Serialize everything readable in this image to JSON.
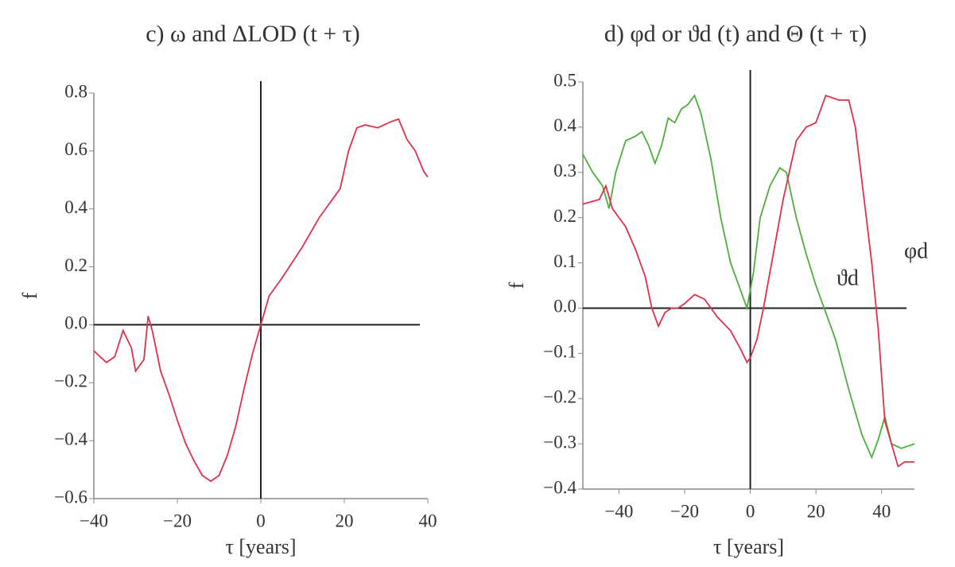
{
  "chart_data": [
    {
      "type": "line",
      "title": "c) ω and ΔLOD (t + τ)",
      "xlabel": "τ [years]",
      "ylabel": "f",
      "xlim": [
        -40,
        40
      ],
      "xticks": [
        {
          "value": -40,
          "label": "−40"
        },
        {
          "value": -20,
          "label": "−20"
        },
        0,
        20,
        40
      ],
      "ylim": [
        -0.6,
        0.8
      ],
      "yticks": [
        {
          "value": -0.6,
          "label": "−0.6"
        },
        {
          "value": -0.4,
          "label": "−0.4"
        },
        {
          "value": -0.2,
          "label": "−0.2"
        },
        {
          "value": 0,
          "label": "0.0"
        },
        0.2,
        0.4,
        0.6,
        0.8
      ],
      "series": [
        {
          "color": "#e0304a",
          "x": [
            -40,
            -37,
            -35,
            -33,
            -31,
            -30,
            -28,
            -27,
            -26,
            -24,
            -22,
            -20,
            -18,
            -16,
            -14,
            -12,
            -10,
            -8,
            -6,
            -4,
            -2,
            0,
            2,
            5,
            10,
            14,
            17,
            19,
            21,
            23,
            25,
            28,
            31,
            33,
            35,
            37,
            39,
            40
          ],
          "values": [
            -0.09,
            -0.13,
            -0.11,
            -0.02,
            -0.08,
            -0.16,
            -0.12,
            0.03,
            -0.02,
            -0.16,
            -0.24,
            -0.33,
            -0.41,
            -0.47,
            -0.52,
            -0.54,
            -0.52,
            -0.45,
            -0.35,
            -0.22,
            -0.1,
            0,
            0.1,
            0.16,
            0.27,
            0.37,
            0.43,
            0.47,
            0.6,
            0.68,
            0.69,
            0.68,
            0.7,
            0.71,
            0.64,
            0.6,
            0.53,
            0.51
          ]
        }
      ]
    },
    {
      "type": "line",
      "title": "d) φd  or  ϑd (t)  and  Θ (t + τ)",
      "xlabel": "τ [years]",
      "ylabel": "f",
      "xlim": [
        -51,
        50
      ],
      "xticks": [
        {
          "value": -40,
          "label": "−40"
        },
        {
          "value": -20,
          "label": "−20"
        },
        0,
        20,
        40
      ],
      "ylim": [
        -0.4,
        0.5
      ],
      "yticks": [
        {
          "value": -0.4,
          "label": "−0.4"
        },
        {
          "value": -0.3,
          "label": "−0.3"
        },
        {
          "value": -0.2,
          "label": "−0.2"
        },
        {
          "value": -0.1,
          "label": "−0.1"
        },
        {
          "value": 0,
          "label": "0.0"
        },
        0.1,
        0.2,
        0.3,
        0.4,
        0.5
      ],
      "series": [
        {
          "name": "ϑd",
          "color": "#4caf3a",
          "x": [
            -51,
            -48,
            -45,
            -43,
            -41,
            -38,
            -35,
            -33,
            -31,
            -29,
            -27,
            -25,
            -23,
            -21,
            -19,
            -17,
            -15,
            -12,
            -9,
            -6,
            -3,
            -1,
            1,
            3,
            6,
            9,
            11,
            14,
            17,
            20,
            23,
            26,
            30,
            34,
            37,
            39,
            41,
            43,
            46,
            50
          ],
          "values": [
            0.34,
            0.3,
            0.27,
            0.22,
            0.3,
            0.37,
            0.38,
            0.39,
            0.36,
            0.32,
            0.36,
            0.42,
            0.41,
            0.44,
            0.45,
            0.47,
            0.43,
            0.33,
            0.2,
            0.1,
            0.04,
            0,
            0.08,
            0.2,
            0.27,
            0.31,
            0.3,
            0.2,
            0.12,
            0.05,
            -0.01,
            -0.07,
            -0.18,
            -0.28,
            -0.33,
            -0.29,
            -0.24,
            -0.3,
            -0.31,
            -0.3
          ]
        },
        {
          "name": "φd",
          "color": "#e0304a",
          "x": [
            -51,
            -46,
            -44,
            -42,
            -40,
            -38,
            -35,
            -32,
            -30,
            -28,
            -26,
            -24,
            -22,
            -20,
            -17,
            -14,
            -10,
            -6,
            -3,
            -1,
            0,
            2,
            4,
            7,
            10,
            14,
            17,
            20,
            23,
            27,
            30,
            32,
            35,
            37,
            39,
            41,
            43,
            45,
            47,
            50
          ],
          "values": [
            0.23,
            0.24,
            0.27,
            0.22,
            0.2,
            0.18,
            0.13,
            0.07,
            0,
            -0.04,
            -0.01,
            0,
            0,
            0.01,
            0.03,
            0.02,
            -0.02,
            -0.05,
            -0.09,
            -0.12,
            -0.11,
            -0.07,
            0,
            0.12,
            0.24,
            0.37,
            0.4,
            0.41,
            0.47,
            0.46,
            0.46,
            0.4,
            0.22,
            0.1,
            -0.05,
            -0.25,
            -0.3,
            -0.35,
            -0.34,
            -0.34
          ]
        }
      ]
    }
  ]
}
